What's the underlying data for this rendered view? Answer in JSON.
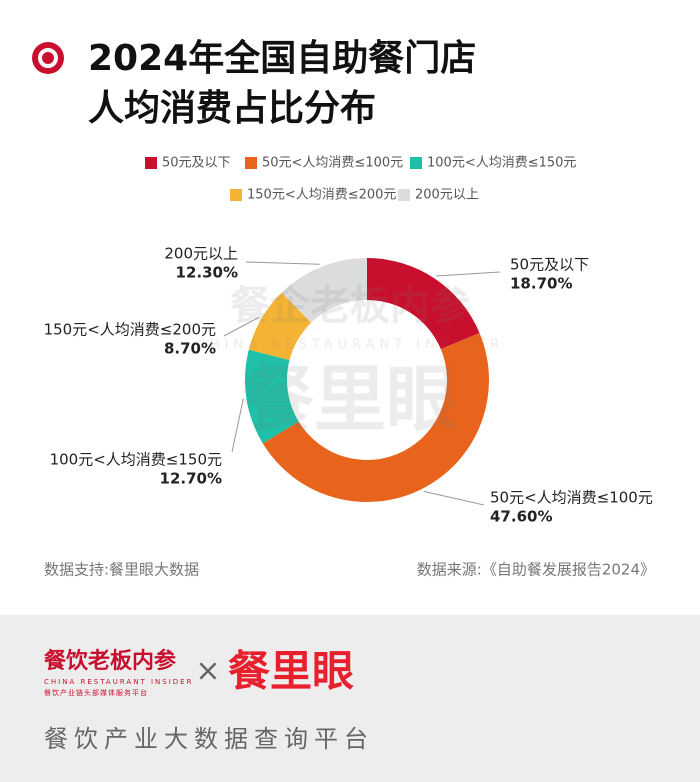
{
  "chart_data": {
    "type": "donut",
    "title": [
      "2024年全国自助餐门店",
      "人均消费占比分布"
    ],
    "categories": [
      "50元及以下",
      "50元<人均消费≤100元",
      "100元<人均消费≤150元",
      "150元<人均消费≤200元",
      "200元以上"
    ],
    "values": [
      18.7,
      47.6,
      12.7,
      8.7,
      12.3
    ],
    "value_labels": [
      "18.70%",
      "47.60%",
      "12.70%",
      "8.70%",
      "12.30%"
    ],
    "colors": [
      "#c8102e",
      "#e8641c",
      "#1fbfa8",
      "#f5b335",
      "#dcdcdc"
    ],
    "notes": [
      "数据支持:餐里眼大数据",
      "数据来源:《自助餐发展报告2024》"
    ]
  },
  "watermark": {
    "brand": "餐企老板内参",
    "english": "CHINA RESTAURANT INSIDER",
    "logo": "餐里眼"
  },
  "footer": {
    "brand": "餐饮老板内参",
    "english": "CHINA RESTAURANT INSIDER",
    "tagline_small": "餐饮产业链头部媒体服务平台",
    "cross": "×",
    "partner": "餐里眼",
    "slogan": "餐饮产业大数据查询平台"
  }
}
